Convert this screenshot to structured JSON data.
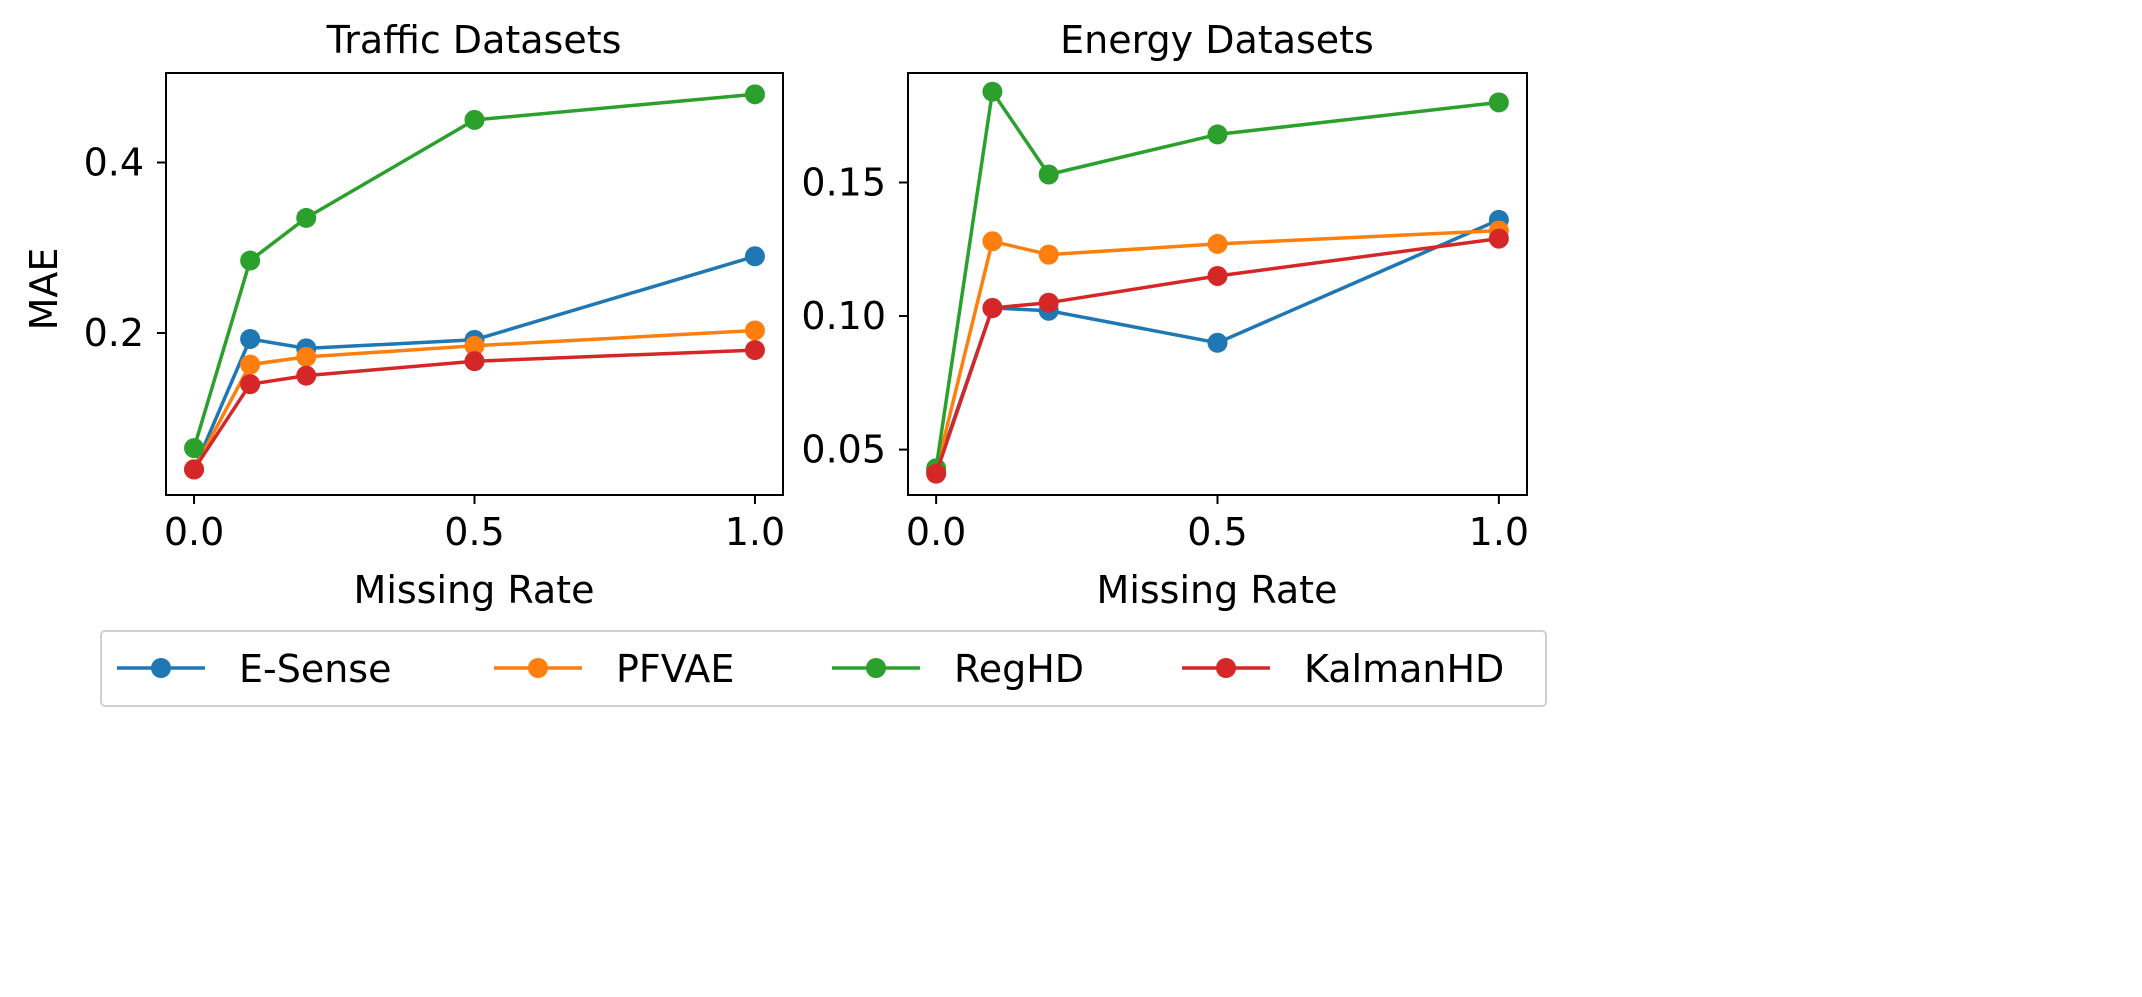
{
  "chart_data": [
    {
      "type": "line",
      "title": "Traffic Datasets",
      "xlabel": "Missing Rate",
      "ylabel": "MAE",
      "x": [
        0.0,
        0.1,
        0.2,
        0.5,
        1.0
      ],
      "xlim": [
        -0.05,
        1.05
      ],
      "ylim": [
        0.01,
        0.505
      ],
      "xticks": [
        0.0,
        0.5,
        1.0
      ],
      "xtick_labels": [
        "0.0",
        "0.5",
        "1.0"
      ],
      "yticks": [
        0.2,
        0.4
      ],
      "ytick_labels": [
        "0.2",
        "0.4"
      ],
      "series": [
        {
          "name": "E-Sense",
          "color": "#1f77b4",
          "values": [
            0.04,
            0.193,
            0.182,
            0.192,
            0.29
          ]
        },
        {
          "name": "PFVAE",
          "color": "#ff7f0e",
          "values": [
            0.04,
            0.163,
            0.172,
            0.185,
            0.203
          ]
        },
        {
          "name": "RegHD",
          "color": "#2ca02c",
          "values": [
            0.065,
            0.285,
            0.335,
            0.45,
            0.48
          ]
        },
        {
          "name": "KalmanHD",
          "color": "#d62728",
          "values": [
            0.04,
            0.14,
            0.15,
            0.167,
            0.18
          ]
        }
      ],
      "grid": false
    },
    {
      "type": "line",
      "title": "Energy Datasets",
      "xlabel": "Missing Rate",
      "ylabel": "",
      "x": [
        0.0,
        0.1,
        0.2,
        0.5,
        1.0
      ],
      "xlim": [
        -0.05,
        1.05
      ],
      "ylim": [
        0.033,
        0.191
      ],
      "xticks": [
        0.0,
        0.5,
        1.0
      ],
      "xtick_labels": [
        "0.0",
        "0.5",
        "1.0"
      ],
      "yticks": [
        0.05,
        0.1,
        0.15
      ],
      "ytick_labels": [
        "0.05",
        "0.10",
        "0.15"
      ],
      "series": [
        {
          "name": "E-Sense",
          "color": "#1f77b4",
          "values": [
            0.042,
            0.103,
            0.102,
            0.09,
            0.136
          ]
        },
        {
          "name": "PFVAE",
          "color": "#ff7f0e",
          "values": [
            0.042,
            0.128,
            0.123,
            0.127,
            0.132
          ]
        },
        {
          "name": "RegHD",
          "color": "#2ca02c",
          "values": [
            0.043,
            0.184,
            0.153,
            0.168,
            0.18
          ]
        },
        {
          "name": "KalmanHD",
          "color": "#d62728",
          "values": [
            0.041,
            0.103,
            0.105,
            0.115,
            0.129
          ]
        }
      ],
      "grid": false
    }
  ],
  "legend": {
    "placement": "bottom",
    "entries": [
      {
        "label": "E-Sense",
        "color": "#1f77b4"
      },
      {
        "label": "PFVAE",
        "color": "#ff7f0e"
      },
      {
        "label": "RegHD",
        "color": "#2ca02c"
      },
      {
        "label": "KalmanHD",
        "color": "#d62728"
      }
    ]
  }
}
